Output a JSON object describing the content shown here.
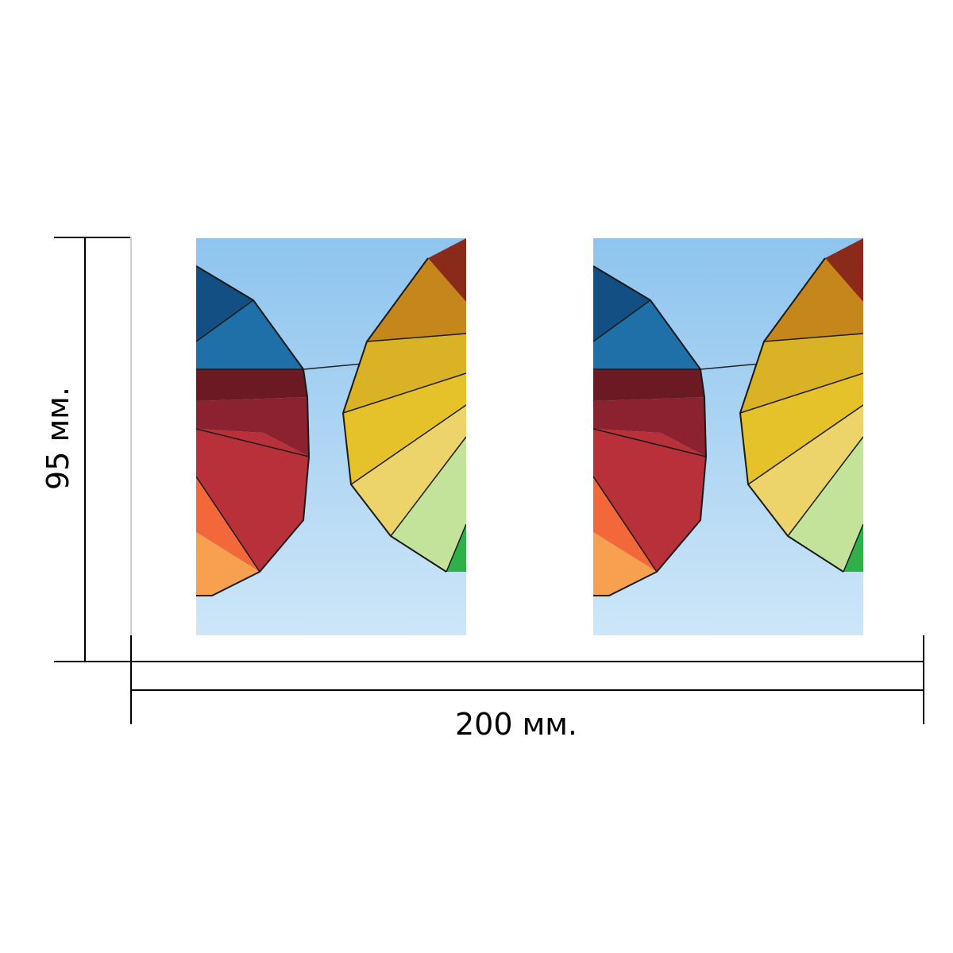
{
  "dimensions": {
    "width_label": "200 мм.",
    "height_label": "95 мм."
  },
  "product": {
    "panel_count": 2,
    "image_subject": "colorful-umbrellas-on-sky",
    "colors": {
      "sky": "#a9d2f0",
      "blue": "#1f6fa8",
      "burgundy": "#7e1f2a",
      "red": "#a32630",
      "orange": "#f2683a",
      "yellow": "#e6c22a",
      "light_green": "#c4e39a",
      "green": "#2fb14a"
    }
  }
}
